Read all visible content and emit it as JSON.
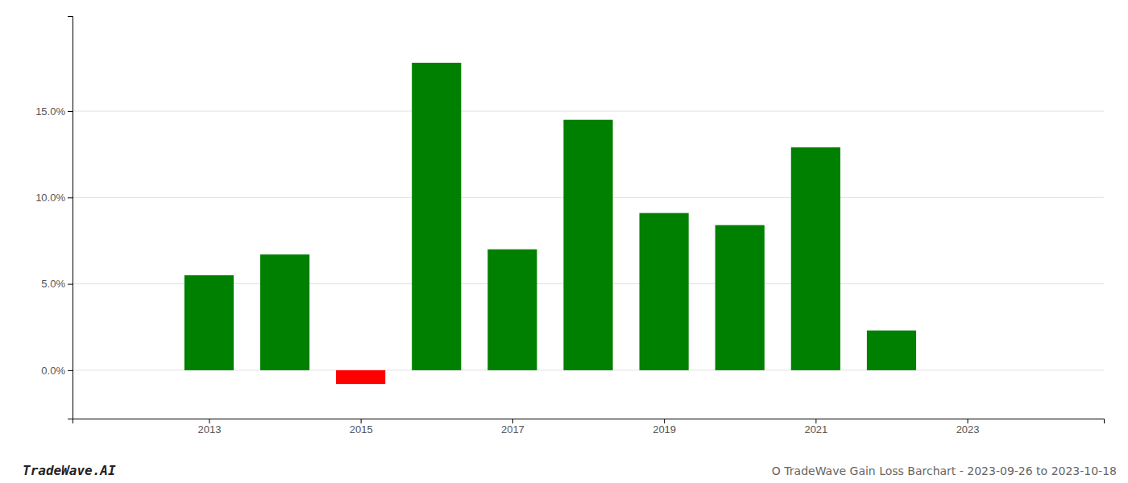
{
  "chart_data": {
    "type": "bar",
    "x": [
      2013,
      2014,
      2015,
      2016,
      2017,
      2018,
      2019,
      2020,
      2021,
      2022
    ],
    "values": [
      0.055,
      0.067,
      -0.008,
      0.178,
      0.07,
      0.145,
      0.091,
      0.084,
      0.129,
      0.023
    ],
    "colors": [
      "#008000",
      "#008000",
      "#ff0000",
      "#008000",
      "#008000",
      "#008000",
      "#008000",
      "#008000",
      "#008000",
      "#008000"
    ],
    "xlim": [
      2011.2,
      2024.8
    ],
    "xticks": [
      2013,
      2015,
      2017,
      2019,
      2021,
      2023
    ],
    "ylim": [
      -0.028,
      0.205
    ],
    "yticks": [
      {
        "value": 0.0,
        "label": "0.0%"
      },
      {
        "value": 0.05,
        "label": "5.0%"
      },
      {
        "value": 0.1,
        "label": "10.0%"
      },
      {
        "value": 0.15,
        "label": "15.0%"
      }
    ],
    "grid": true,
    "annotations": [
      "TradeWave.AI",
      "O TradeWave Gain Loss Barchart - 2023-09-26 to 2023-10-18"
    ]
  }
}
